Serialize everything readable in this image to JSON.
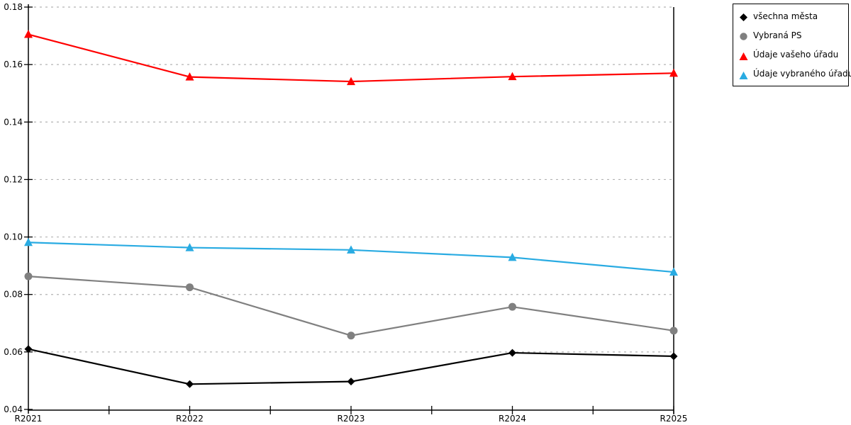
{
  "chart_data": {
    "type": "line",
    "categories": [
      "R2021",
      "R2022",
      "R2023",
      "R2024",
      "R2025"
    ],
    "series": [
      {
        "name": "všechna města",
        "color": "#000000",
        "marker": "diamond",
        "values": [
          0.061,
          0.0488,
          0.0497,
          0.0597,
          0.0585
        ]
      },
      {
        "name": "Vybraná PS",
        "color": "#808080",
        "marker": "circle",
        "values": [
          0.0863,
          0.0825,
          0.0657,
          0.0757,
          0.0674
        ]
      },
      {
        "name": "Údaje vašeho úřadu",
        "color": "#ff0000",
        "marker": "triangle",
        "values": [
          0.1705,
          0.1557,
          0.1541,
          0.1558,
          0.157
        ]
      },
      {
        "name": "Údaje vybraného úřadu",
        "color": "#29abe2",
        "marker": "triangle",
        "values": [
          0.0981,
          0.0963,
          0.0955,
          0.0929,
          0.0878
        ]
      }
    ],
    "title": "",
    "xlabel": "",
    "ylabel": "",
    "ylim": [
      0.04,
      0.18
    ],
    "ytick_step": 0.02,
    "ytick_labels": [
      "0.04",
      "0.06",
      "0.08",
      "0.10",
      "0.12",
      "0.14",
      "0.16",
      "0.18"
    ],
    "grid": "horizontal-dashed",
    "grid_color": "#b3b3b3",
    "axis_color": "#000000",
    "legend_position": "top-right"
  }
}
